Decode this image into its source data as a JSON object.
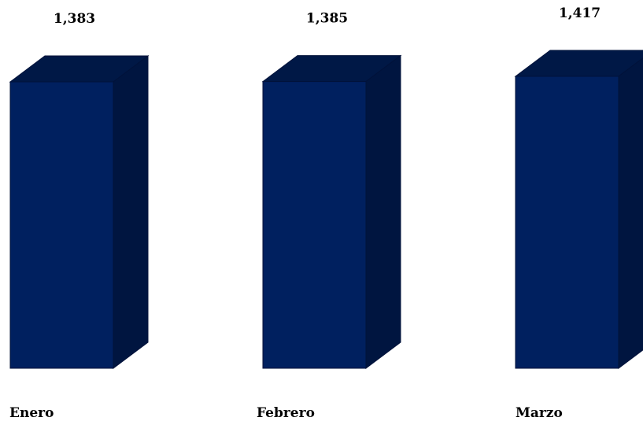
{
  "colors": {
    "bar_front": "#00205f",
    "bar_top": "#001846",
    "bar_side": "#001540",
    "bar_edge": "#00123a",
    "text": "#000000",
    "background": "#ffffff"
  },
  "chart_data": {
    "type": "bar",
    "style": "3d-column",
    "categories": [
      "Enero",
      "Febrero",
      "Marzo"
    ],
    "values": [
      1383,
      1385,
      1417
    ],
    "value_labels": [
      "1,383",
      "1,385",
      "1,417"
    ],
    "title": "",
    "xlabel": "",
    "ylabel": "",
    "ylim": [
      0,
      1417
    ],
    "grid": false,
    "legend": "none"
  }
}
